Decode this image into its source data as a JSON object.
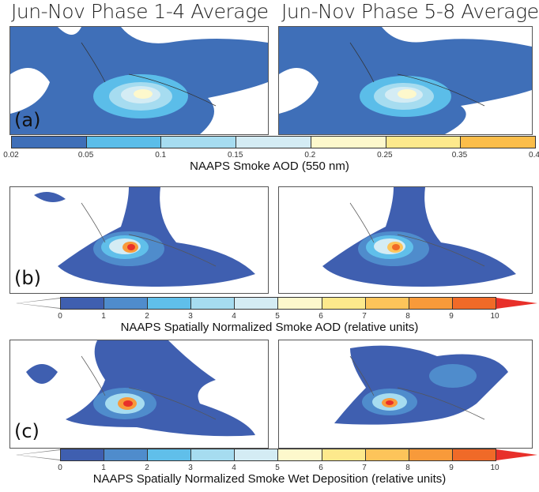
{
  "titles": {
    "left": "Jun-Nov Phase 1-4 Average",
    "right": "Jun-Nov Phase 5-8 Average"
  },
  "panels": {
    "a": "(a)",
    "b": "(b)",
    "c": "(c)"
  },
  "colorbars": [
    {
      "label": "NAAPS Smoke AOD (550 nm)",
      "ticks": [
        "0.02",
        "0.05",
        "0.1",
        "0.15",
        "0.2",
        "0.25",
        "0.35",
        "0.4"
      ],
      "colors": [
        "#3f6fb8",
        "#5bbde9",
        "#a6dcf0",
        "#d4ecf4",
        "#fdf8cc",
        "#fde98c",
        "#fbbd4a"
      ],
      "extend": false
    },
    {
      "label": "NAAPS Spatially Normalized Smoke AOD (relative units)",
      "ticks": [
        "0",
        "1",
        "2",
        "3",
        "4",
        "5",
        "6",
        "7",
        "8",
        "9",
        "10"
      ],
      "colors": [
        "#3f5fb0",
        "#4f8ccc",
        "#60bfea",
        "#a6dcf0",
        "#d4ecf4",
        "#fdf8cc",
        "#fde98c",
        "#fdc45a",
        "#f89a3a",
        "#f06a28"
      ],
      "extend": true,
      "under": "#ffffff",
      "over": "#e8302a"
    },
    {
      "label": "NAAPS Spatially Normalized Smoke Wet Deposition (relative units)",
      "ticks": [
        "0",
        "1",
        "2",
        "3",
        "4",
        "5",
        "6",
        "7",
        "8",
        "9",
        "10"
      ],
      "colors": [
        "#3f5fb0",
        "#4f8ccc",
        "#60bfea",
        "#a6dcf0",
        "#d4ecf4",
        "#fdf8cc",
        "#fde98c",
        "#fdc45a",
        "#f89a3a",
        "#f06a28"
      ],
      "extend": true,
      "under": "#ffffff",
      "over": "#e8302a"
    }
  ]
}
